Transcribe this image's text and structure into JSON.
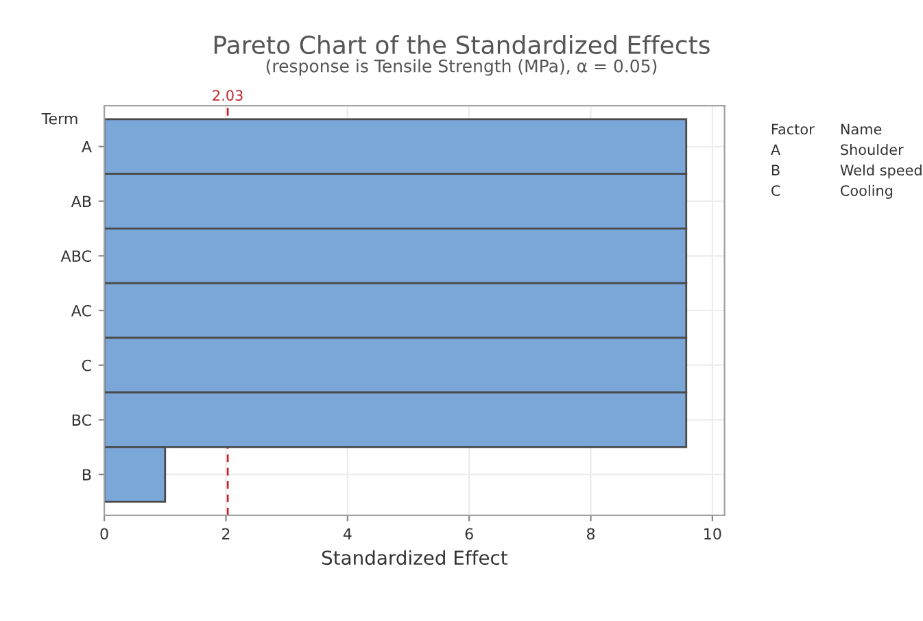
{
  "chart_data": {
    "type": "bar",
    "orientation": "horizontal",
    "title": "Pareto Chart of the Standardized Effects",
    "subtitle": "(response is Tensile Strength (MPa), α = 0.05)",
    "xlabel": "Standardized Effect",
    "ylabel": "Term",
    "categories": [
      "A",
      "AB",
      "ABC",
      "AC",
      "C",
      "BC",
      "B"
    ],
    "values": [
      9.57,
      9.57,
      9.57,
      9.57,
      9.57,
      9.57,
      1.0
    ],
    "color": "#7ba6d8",
    "xlim": [
      0,
      10.2
    ],
    "xticks": [
      0,
      2,
      4,
      6,
      8,
      10
    ],
    "grid": true,
    "ref_lines": [
      {
        "axis": "x",
        "value": 2.03,
        "label": "2.03",
        "color": "#c0272d",
        "line_style": "dashed"
      }
    ],
    "annotations": [
      "Factor",
      "Name",
      "A",
      "Shoulder",
      "B",
      "Weld speed",
      "C",
      "Cooling"
    ]
  }
}
